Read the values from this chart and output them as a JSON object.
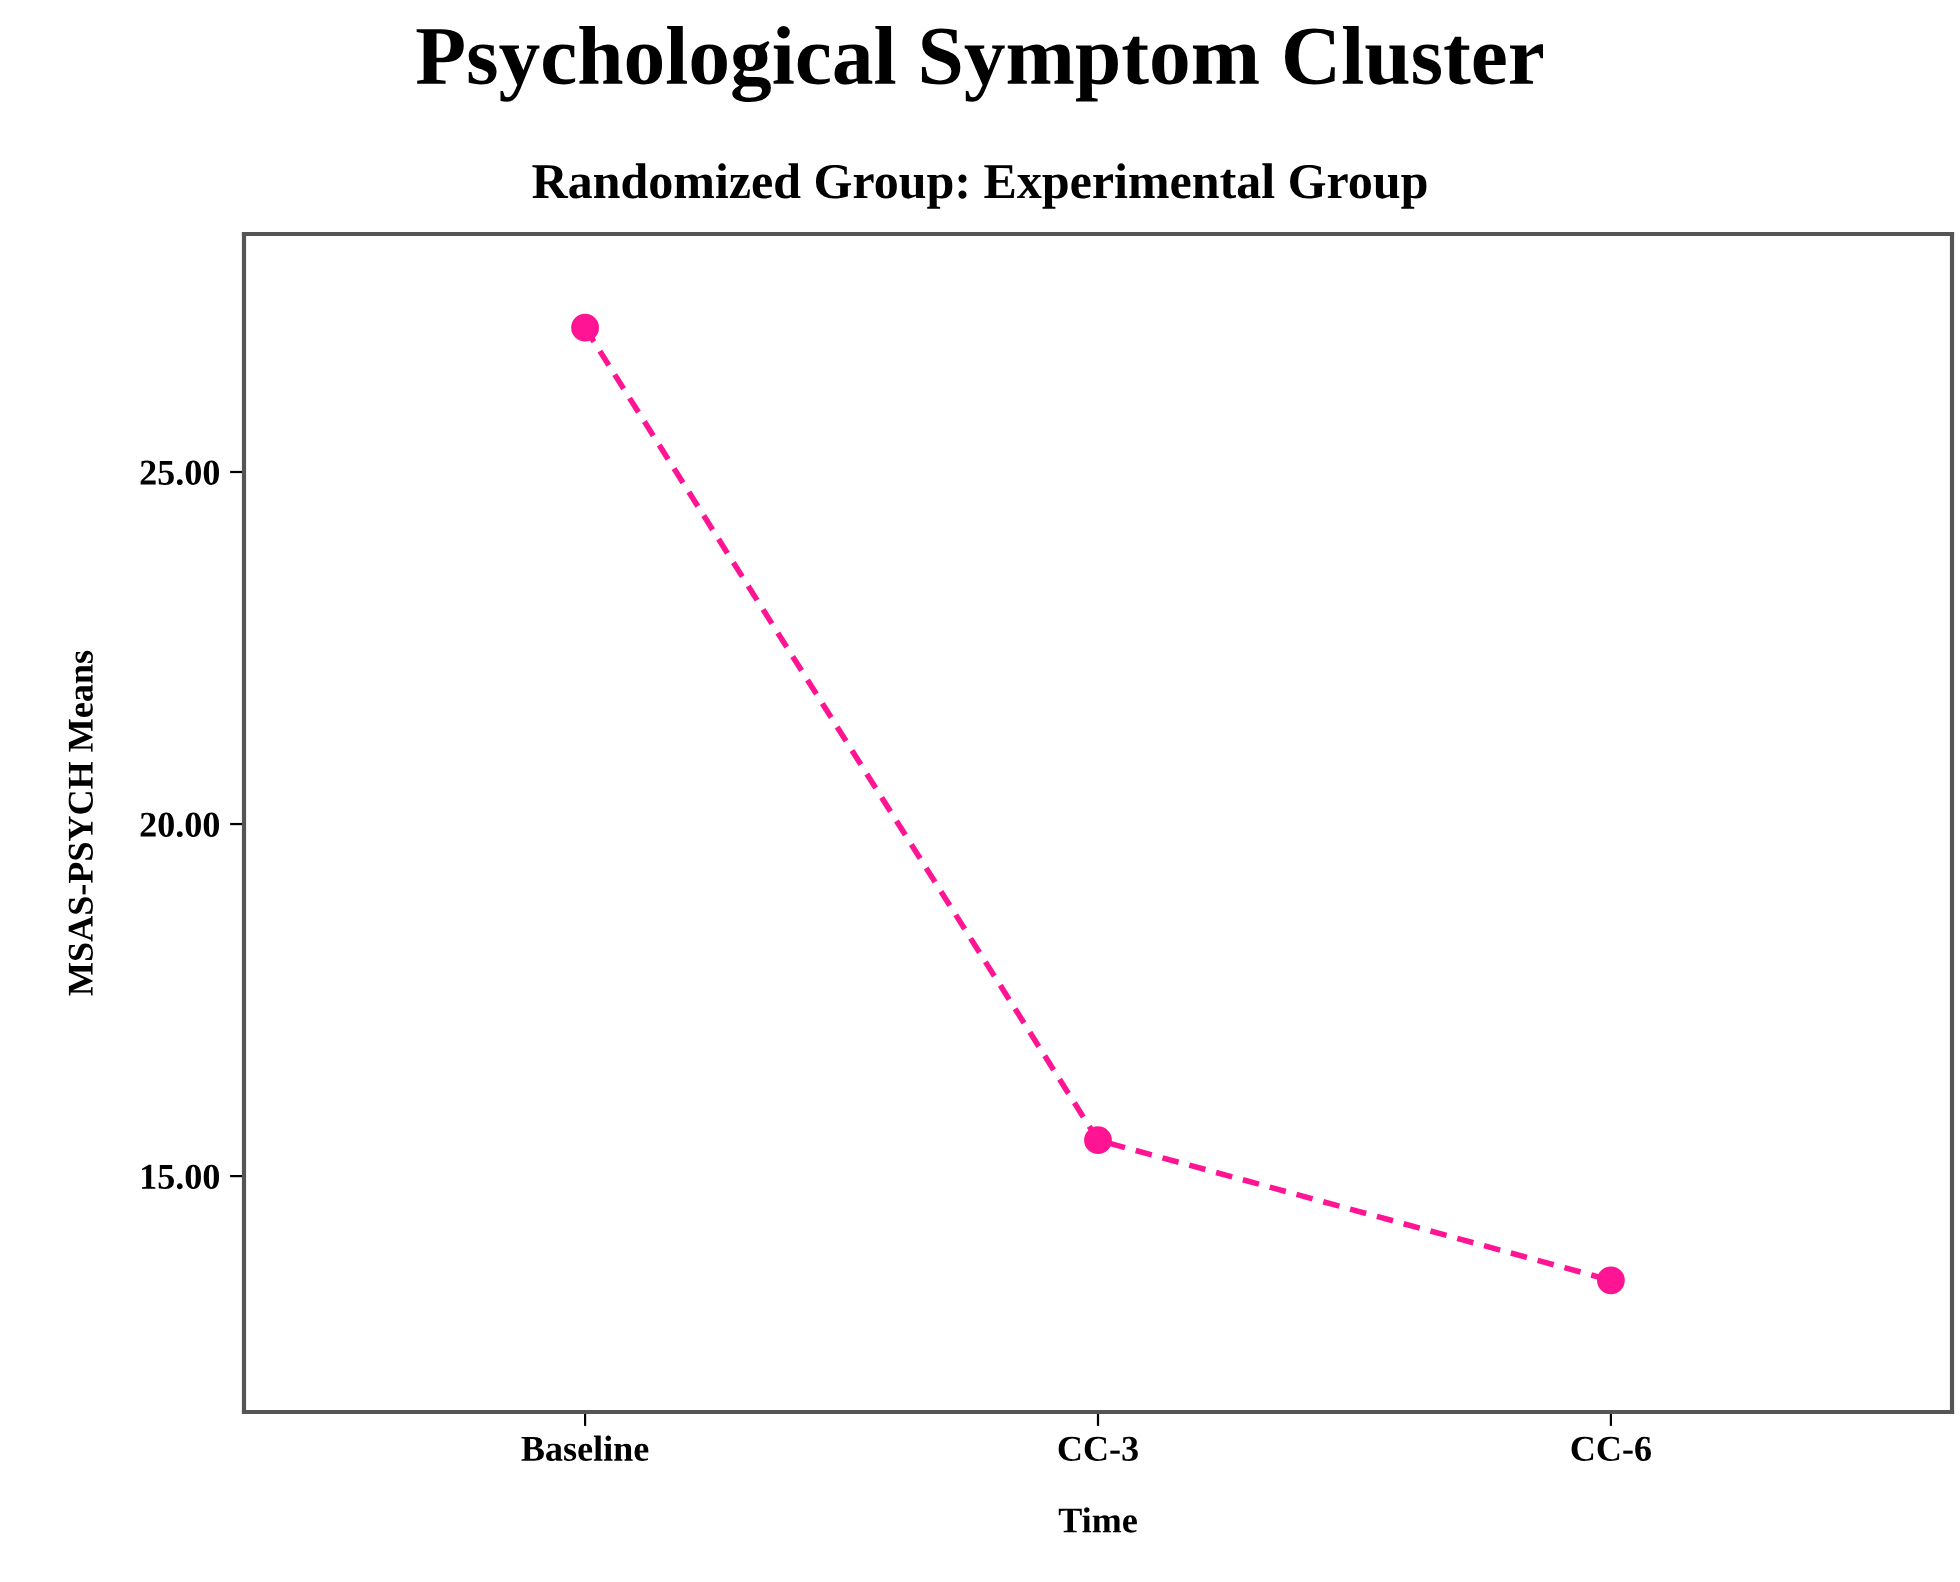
{
  "chart_data": {
    "type": "line",
    "title": "Psychological Symptom Cluster",
    "subtitle": "Randomized Group: Experimental Group",
    "xlabel": "Time",
    "ylabel": "MSAS-PSYCH Means",
    "categories": [
      "Baseline",
      "CC-3",
      "CC-6"
    ],
    "series": [
      {
        "color": "#ff1493",
        "values": [
          27.05,
          15.51,
          13.52
        ]
      }
    ],
    "ylim": [
      11.65,
      28.38
    ],
    "yticks": [
      {
        "value": 15,
        "label": "15.00"
      },
      {
        "value": 20,
        "label": "20.00"
      },
      {
        "value": 25,
        "label": "25.00"
      }
    ],
    "marker": "circle",
    "line_style": "dashed",
    "grid": false,
    "legend": false
  }
}
